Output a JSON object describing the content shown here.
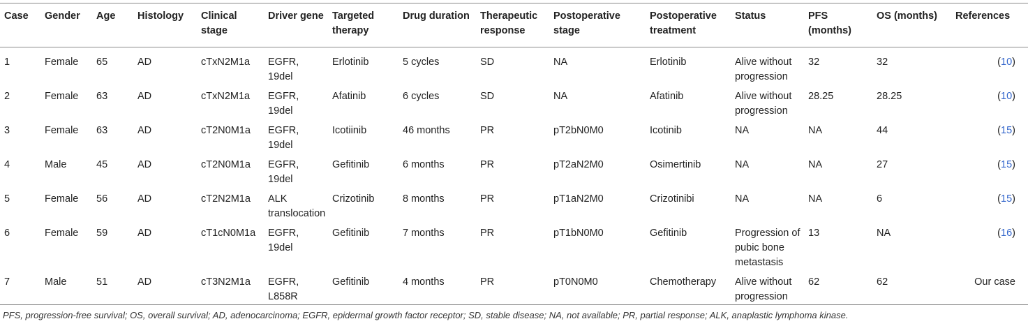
{
  "table": {
    "headers": [
      "Case",
      "Gender",
      "Age",
      "Histology",
      "Clinical stage",
      "Driver gene",
      "Targeted therapy",
      "Drug duration",
      "Therapeutic response",
      "Postoperative stage",
      "Postoperative treatment",
      "Status",
      "PFS (months)",
      "OS (months)",
      "References"
    ],
    "rows": [
      {
        "case": "1",
        "gender": "Female",
        "age": "65",
        "histology": "AD",
        "clinical_stage": "cTxN2M1a",
        "driver_gene": "EGFR, 19del",
        "targeted_therapy": "Erlotinib",
        "drug_duration": "5 cycles",
        "response": "SD",
        "postop_stage": "NA",
        "postop_treatment": "Erlotinib",
        "status": "Alive without progression",
        "pfs": "32",
        "os": "32",
        "ref_open": "(",
        "ref_num": "10",
        "ref_close": ")"
      },
      {
        "case": "2",
        "gender": "Female",
        "age": "63",
        "histology": "AD",
        "clinical_stage": "cTxN2M1a",
        "driver_gene": "EGFR, 19del",
        "targeted_therapy": "Afatinib",
        "drug_duration": "6 cycles",
        "response": "SD",
        "postop_stage": "NA",
        "postop_treatment": "Afatinib",
        "status": "Alive without progression",
        "pfs": "28.25",
        "os": "28.25",
        "ref_open": "(",
        "ref_num": "10",
        "ref_close": ")"
      },
      {
        "case": "3",
        "gender": "Female",
        "age": "63",
        "histology": "AD",
        "clinical_stage": "cT2N0M1a",
        "driver_gene": "EGFR, 19del",
        "targeted_therapy": "Icotiinib",
        "drug_duration": "46 months",
        "response": "PR",
        "postop_stage": "pT2bN0M0",
        "postop_treatment": "Icotinib",
        "status": "NA",
        "pfs": "NA",
        "os": "44",
        "ref_open": "(",
        "ref_num": "15",
        "ref_close": ")"
      },
      {
        "case": "4",
        "gender": "Male",
        "age": "45",
        "histology": "AD",
        "clinical_stage": "cT2N0M1a",
        "driver_gene": "EGFR, 19del",
        "targeted_therapy": "Gefitinib",
        "drug_duration": "6 months",
        "response": "PR",
        "postop_stage": "pT2aN2M0",
        "postop_treatment": "Osimertinib",
        "status": "NA",
        "pfs": "NA",
        "os": "27",
        "ref_open": "(",
        "ref_num": "15",
        "ref_close": ")"
      },
      {
        "case": "5",
        "gender": "Female",
        "age": "56",
        "histology": "AD",
        "clinical_stage": "cT2N2M1a",
        "driver_gene": "ALK translocation",
        "targeted_therapy": "Crizotinib",
        "drug_duration": "8 months",
        "response": "PR",
        "postop_stage": "pT1aN2M0",
        "postop_treatment": "Crizotinibi",
        "status": "NA",
        "pfs": "NA",
        "os": "6",
        "ref_open": "(",
        "ref_num": "15",
        "ref_close": ")"
      },
      {
        "case": "6",
        "gender": "Female",
        "age": "59",
        "histology": "AD",
        "clinical_stage": "cT1cN0M1a",
        "driver_gene": "EGFR, 19del",
        "targeted_therapy": "Gefitinib",
        "drug_duration": "7 months",
        "response": "PR",
        "postop_stage": "pT1bN0M0",
        "postop_treatment": "Gefitinib",
        "status": "Progression of pubic bone metastasis",
        "pfs": "13",
        "os": "NA",
        "ref_open": "(",
        "ref_num": "16",
        "ref_close": ")"
      },
      {
        "case": "7",
        "gender": "Male",
        "age": "51",
        "histology": "AD",
        "clinical_stage": "cT3N2M1a",
        "driver_gene": "EGFR, L858R",
        "targeted_therapy": "Gefitinib",
        "drug_duration": "4 months",
        "response": "PR",
        "postop_stage": "pT0N0M0",
        "postop_treatment": "Chemotherapy",
        "status": "Alive without progression",
        "pfs": "62",
        "os": "62",
        "ref_open": "",
        "ref_num": "",
        "ref_close": "",
        "ref_text": "Our case"
      }
    ]
  },
  "footnote": "PFS, progression-free survival; OS, overall survival; AD, adenocarcinoma; EGFR, epidermal growth factor receptor; SD, stable disease; NA, not available; PR, partial response; ALK, anaplastic lymphoma kinase.",
  "colors": {
    "text": "#222222",
    "reference_link": "#3366cc",
    "rule": "#8a8a8a"
  }
}
